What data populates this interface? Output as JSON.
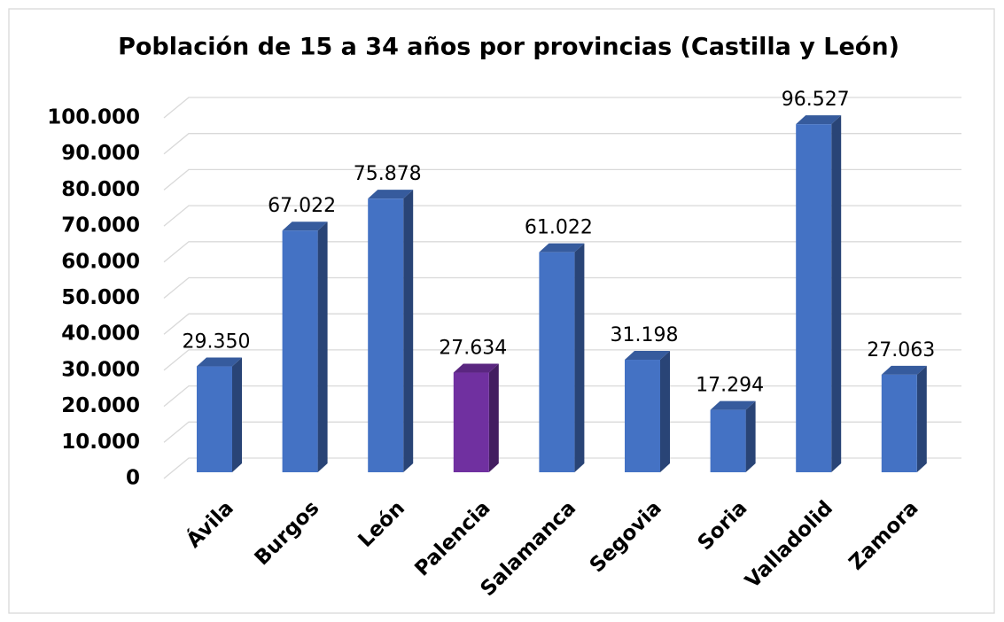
{
  "chart_data": {
    "type": "bar3d",
    "title": "Población de 15 a 34 años por provincias (Castilla y León)",
    "categories": [
      "Ávila",
      "Burgos",
      "León",
      "Palencia",
      "Salamanca",
      "Segovia",
      "Soria",
      "Valladolid",
      "Zamora"
    ],
    "values": [
      29350,
      67022,
      75878,
      27634,
      61022,
      31198,
      17294,
      96527,
      27063
    ],
    "value_labels": [
      "29.350",
      "67.022",
      "75.878",
      "27.634",
      "61.022",
      "31.198",
      "17.294",
      "96.527",
      "27.063"
    ],
    "colors": [
      "#4472c4",
      "#4472c4",
      "#4472c4",
      "#7030a0",
      "#4472c4",
      "#4472c4",
      "#4472c4",
      "#4472c4",
      "#4472c4"
    ],
    "ylim": [
      0,
      100000
    ],
    "yticks": [
      0,
      {
        "value": 10000,
        "label": "10.000"
      },
      {
        "value": 20000,
        "label": "20.000"
      },
      {
        "value": 30000,
        "label": "30.000"
      },
      {
        "value": 40000,
        "label": "40.000"
      },
      {
        "value": 50000,
        "label": "50.000"
      },
      {
        "value": 60000,
        "label": "60.000"
      },
      {
        "value": 70000,
        "label": "70.000"
      },
      {
        "value": 80000,
        "label": "80.000"
      },
      {
        "value": 90000,
        "label": "90.000"
      },
      {
        "value": 100000,
        "label": "100.000"
      }
    ],
    "grid": true
  }
}
